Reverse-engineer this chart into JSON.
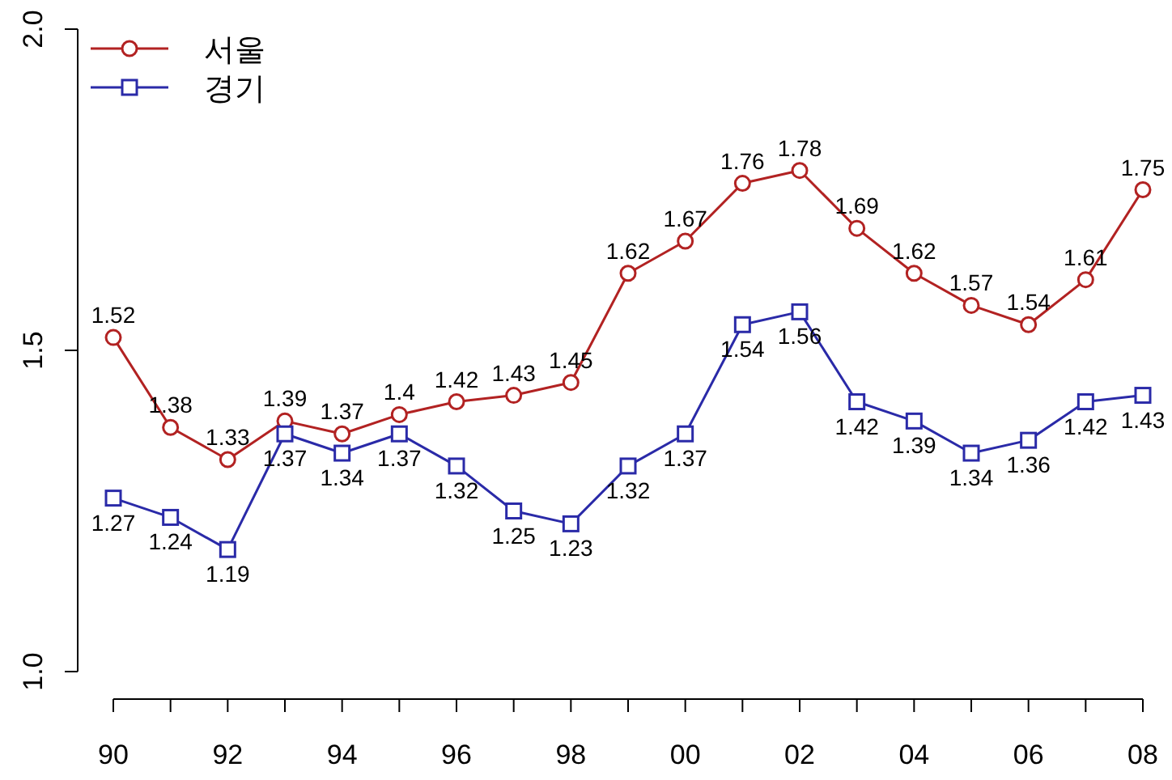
{
  "chart_data": {
    "type": "line",
    "categories": [
      "90",
      null,
      "92",
      null,
      "94",
      null,
      "96",
      null,
      "98",
      null,
      "00",
      null,
      "02",
      null,
      "04",
      null,
      "06",
      null,
      "08"
    ],
    "series": [
      {
        "name": "서울",
        "color": "#b22222",
        "marker": "circle",
        "values": [
          1.52,
          1.38,
          1.33,
          1.39,
          1.37,
          1.4,
          1.42,
          1.43,
          1.45,
          1.62,
          1.67,
          1.76,
          1.78,
          1.69,
          1.62,
          1.57,
          1.54,
          1.61,
          1.75
        ]
      },
      {
        "name": "경기",
        "color": "#2a2aa8",
        "marker": "square",
        "values": [
          1.27,
          1.24,
          1.19,
          1.37,
          1.34,
          1.37,
          1.32,
          1.25,
          1.23,
          1.32,
          1.37,
          1.54,
          1.56,
          1.42,
          1.39,
          1.34,
          1.36,
          1.42,
          1.43
        ]
      }
    ],
    "ylim": [
      1,
      2
    ],
    "yticks": [
      {
        "value": 1,
        "label": "1.0"
      },
      1.5,
      {
        "value": 2,
        "label": "2.0"
      }
    ],
    "data_labels": true,
    "legend": "top left",
    "grid": false
  }
}
